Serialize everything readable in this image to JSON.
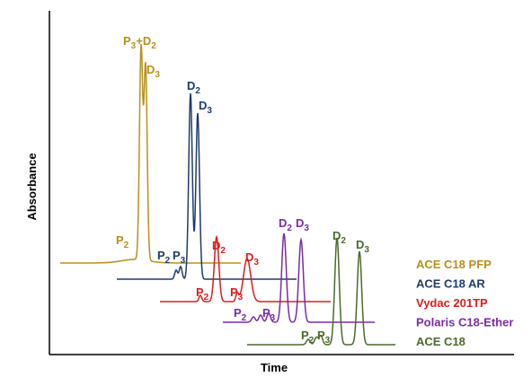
{
  "chart_data": {
    "type": "line",
    "title": "",
    "xlabel": "Time",
    "ylabel": "Absorbance",
    "legend_placement": "right",
    "grid": false,
    "series": [
      {
        "name": "ACE C18 PFP",
        "color": "#b8901a",
        "peaks": [
          {
            "label_main": "P",
            "label_sub": "2"
          },
          {
            "label_main": "P",
            "label_sub": "3",
            "label_suffix": "+D",
            "label_suffix_sub": "2"
          },
          {
            "label_main": "D",
            "label_sub": "3"
          }
        ]
      },
      {
        "name": "ACE C18 AR",
        "color": "#1f3a6b",
        "peaks": [
          {
            "label_main": "P",
            "label_sub": "2"
          },
          {
            "label_main": "P",
            "label_sub": "3"
          },
          {
            "label_main": "D",
            "label_sub": "2"
          },
          {
            "label_main": "D",
            "label_sub": "3"
          }
        ]
      },
      {
        "name": "Vydac 201TP",
        "color": "#e01b1b",
        "peaks": [
          {
            "label_main": "P",
            "label_sub": "2"
          },
          {
            "label_main": "P",
            "label_sub": "3"
          },
          {
            "label_main": "D",
            "label_sub": "2"
          },
          {
            "label_main": "D",
            "label_sub": "3"
          }
        ]
      },
      {
        "name": "Polaris C18-Ether",
        "color": "#7a2aa8",
        "peaks": [
          {
            "label_main": "P",
            "label_sub": "2"
          },
          {
            "label_main": "P",
            "label_sub": "3"
          },
          {
            "label_main": "D",
            "label_sub": "2"
          },
          {
            "label_main": "D",
            "label_sub": "3"
          }
        ]
      },
      {
        "name": "ACE C18",
        "color": "#4a6a2a",
        "peaks": [
          {
            "label_main": "P",
            "label_sub": "2"
          },
          {
            "label_main": "P",
            "label_sub": "3"
          },
          {
            "label_main": "D",
            "label_sub": "2"
          },
          {
            "label_main": "D",
            "label_sub": "3"
          }
        ]
      }
    ]
  }
}
